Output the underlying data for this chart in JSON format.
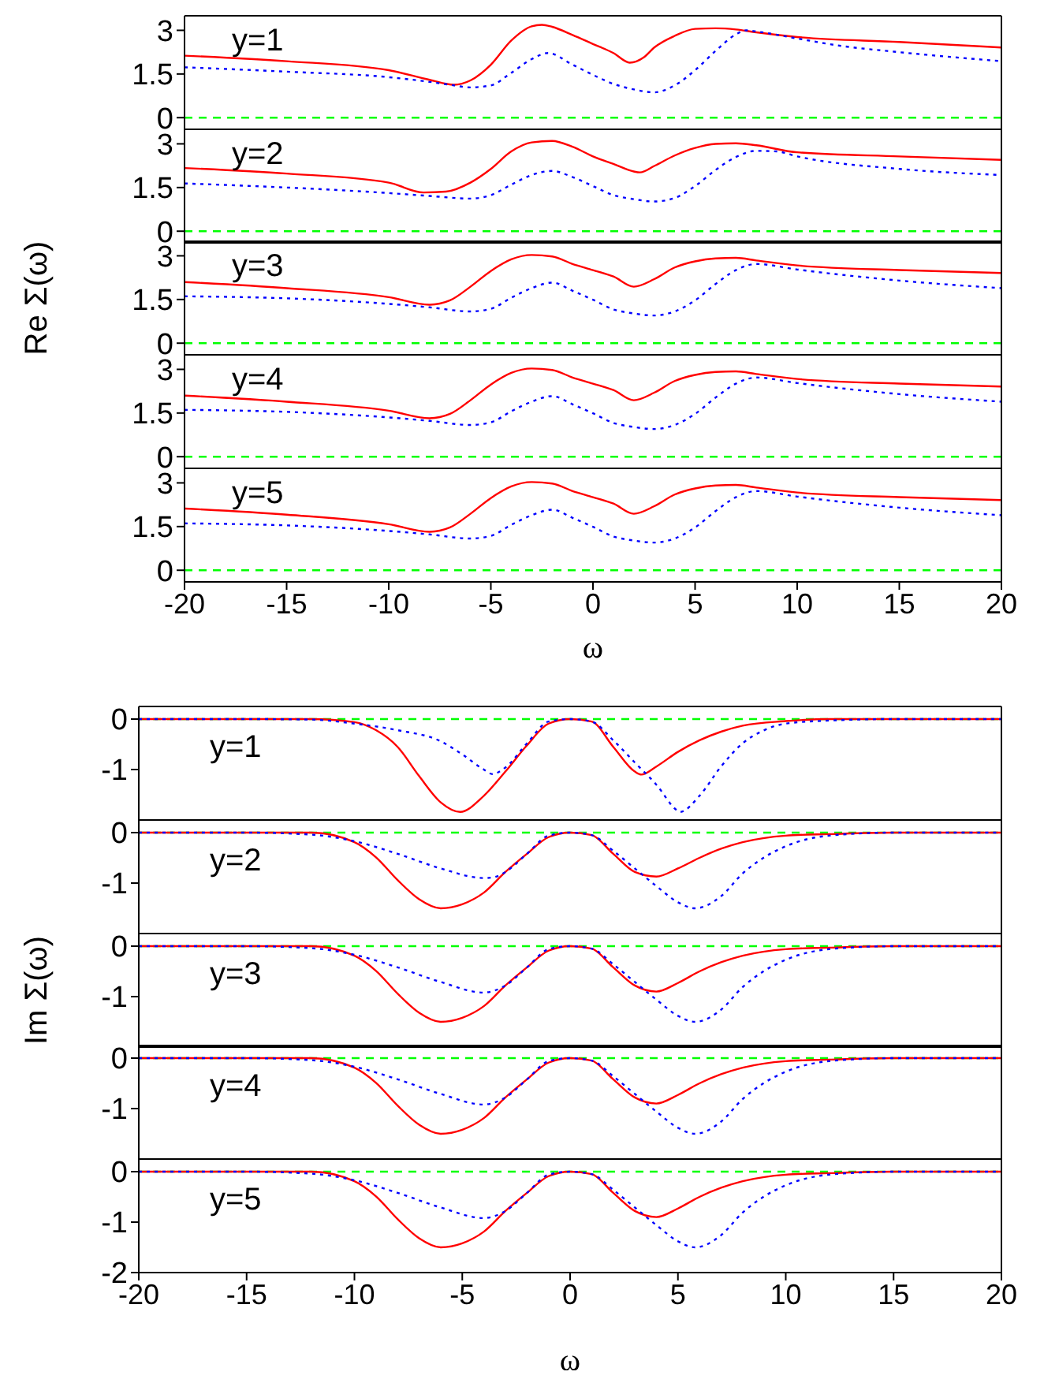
{
  "chart_data": [
    {
      "type": "line",
      "annotations": [
        "y=1"
      ],
      "xlim": [
        -20,
        20
      ],
      "xticks": [
        -20,
        -15,
        -10,
        -5,
        0,
        5,
        10,
        15,
        20
      ],
      "ylim": [
        -0.4,
        3.5
      ],
      "yticks": [
        0,
        1.5,
        3
      ],
      "tick_labels": "y",
      "ref_lines": [
        {
          "axis": "y",
          "value": 0,
          "color": "#00ff00",
          "line_style": "dashed"
        }
      ],
      "series": [
        {
          "color": "#ff0000",
          "line_style": "solid",
          "x": [
            -20,
            -15,
            -10,
            -8,
            -6.8,
            -6,
            -5,
            -4,
            -3,
            -2.5,
            -2,
            -1,
            0,
            1,
            1.8,
            2.5,
            3,
            4,
            5,
            6,
            7,
            8,
            10,
            15,
            20
          ],
          "values": [
            2.13,
            1.94,
            1.63,
            1.3,
            1.13,
            1.28,
            1.82,
            2.65,
            3.14,
            3.19,
            3.12,
            2.84,
            2.53,
            2.22,
            1.89,
            2.08,
            2.41,
            2.81,
            3.05,
            3.07,
            3.03,
            2.93,
            2.77,
            2.6,
            2.41
          ]
        },
        {
          "color": "#0000ff",
          "line_style": "dotted",
          "x": [
            -20,
            -15,
            -10,
            -8,
            -7,
            -6,
            -5,
            -4,
            -3,
            -2.2,
            -1,
            0,
            1,
            2,
            3,
            4,
            5,
            6,
            7,
            7.5,
            8,
            10,
            12,
            15,
            20
          ],
          "values": [
            1.73,
            1.58,
            1.39,
            1.23,
            1.13,
            1.04,
            1.11,
            1.54,
            2.01,
            2.22,
            1.82,
            1.47,
            1.16,
            0.97,
            0.87,
            1.11,
            1.63,
            2.29,
            2.86,
            3.0,
            2.96,
            2.72,
            2.48,
            2.25,
            1.94
          ]
        }
      ]
    },
    {
      "type": "line",
      "annotations": [
        "y=2"
      ],
      "xlim": [
        -20,
        20
      ],
      "xticks": [
        -20,
        -15,
        -10,
        -5,
        0,
        5,
        10,
        15,
        20
      ],
      "ylim": [
        -0.4,
        3.5
      ],
      "yticks": [
        0,
        1.5,
        3
      ],
      "tick_labels": "y",
      "ref_lines": [
        {
          "axis": "y",
          "value": 0,
          "color": "#00ff00",
          "line_style": "dashed"
        }
      ],
      "series": [
        {
          "color": "#ff0000",
          "line_style": "solid",
          "x": [
            -20,
            -15,
            -10,
            -8.3,
            -7.2,
            -6,
            -5,
            -4,
            -3,
            -2,
            -1,
            0,
            1,
            2,
            2.3,
            3,
            4,
            5,
            6,
            7,
            8,
            10,
            15,
            20
          ],
          "values": [
            2.17,
            1.98,
            1.67,
            1.33,
            1.36,
            1.67,
            2.14,
            2.74,
            3.05,
            3.1,
            2.9,
            2.57,
            2.31,
            2.05,
            2.02,
            2.24,
            2.6,
            2.86,
            3.0,
            3.02,
            2.95,
            2.71,
            2.57,
            2.45
          ]
        },
        {
          "color": "#0000ff",
          "line_style": "dotted",
          "x": [
            -20,
            -15,
            -10,
            -8,
            -6,
            -5,
            -4,
            -3,
            -2,
            -1,
            0,
            1,
            2,
            3,
            4,
            5,
            6,
            7,
            8,
            9,
            10,
            15,
            20
          ],
          "values": [
            1.64,
            1.5,
            1.31,
            1.21,
            1.12,
            1.24,
            1.6,
            1.93,
            2.07,
            1.86,
            1.55,
            1.24,
            1.1,
            1.02,
            1.14,
            1.55,
            2.1,
            2.55,
            2.76,
            2.74,
            2.57,
            2.14,
            1.93
          ]
        }
      ]
    },
    {
      "type": "line",
      "ylabel": "Re Σ(ω)",
      "annotations": [
        "y=3"
      ],
      "xlim": [
        -20,
        20
      ],
      "xticks": [
        -20,
        -15,
        -10,
        -5,
        0,
        5,
        10,
        15,
        20
      ],
      "ylim": [
        -0.4,
        3.5
      ],
      "yticks": [
        0,
        1.5,
        3
      ],
      "tick_labels": "y",
      "ref_lines": [
        {
          "axis": "y",
          "value": 0,
          "color": "#00ff00",
          "line_style": "dashed"
        }
      ],
      "series": [
        {
          "color": "#ff0000",
          "line_style": "solid",
          "x": [
            -20,
            -15,
            -10,
            -8,
            -7,
            -6,
            -5,
            -4,
            -3,
            -2,
            -1,
            0,
            1,
            2,
            3,
            4,
            5,
            6,
            7,
            8,
            10,
            15,
            20
          ],
          "values": [
            2.1,
            1.89,
            1.58,
            1.32,
            1.47,
            1.94,
            2.48,
            2.88,
            3.03,
            2.98,
            2.72,
            2.51,
            2.29,
            1.94,
            2.2,
            2.6,
            2.81,
            2.91,
            2.93,
            2.84,
            2.67,
            2.51,
            2.41
          ]
        },
        {
          "color": "#0000ff",
          "line_style": "dotted",
          "x": [
            -20,
            -15,
            -10,
            -8,
            -6,
            -5,
            -4,
            -3,
            -2,
            -1,
            0,
            1,
            2,
            3,
            4,
            5,
            6,
            7,
            8,
            10,
            15,
            20
          ],
          "values": [
            1.61,
            1.54,
            1.35,
            1.23,
            1.09,
            1.18,
            1.56,
            1.89,
            2.08,
            1.8,
            1.49,
            1.16,
            1.02,
            0.95,
            1.09,
            1.47,
            2.03,
            2.51,
            2.72,
            2.53,
            2.15,
            1.89
          ]
        }
      ]
    },
    {
      "type": "line",
      "annotations": [
        "y=4"
      ],
      "xlim": [
        -20,
        20
      ],
      "xticks": [
        -20,
        -15,
        -10,
        -5,
        0,
        5,
        10,
        15,
        20
      ],
      "ylim": [
        -0.4,
        3.5
      ],
      "yticks": [
        0,
        1.5,
        3
      ],
      "tick_labels": "y",
      "ref_lines": [
        {
          "axis": "y",
          "value": 0,
          "color": "#00ff00",
          "line_style": "dashed"
        }
      ],
      "series": [
        {
          "color": "#ff0000",
          "line_style": "solid",
          "x": [
            -20,
            -15,
            -10,
            -8,
            -7,
            -6,
            -5,
            -4,
            -3,
            -2,
            -1,
            0,
            1,
            2,
            3,
            4,
            5,
            6,
            7,
            8,
            10,
            15,
            20
          ],
          "values": [
            2.1,
            1.89,
            1.58,
            1.32,
            1.47,
            1.94,
            2.48,
            2.88,
            3.03,
            2.98,
            2.72,
            2.51,
            2.29,
            1.94,
            2.2,
            2.6,
            2.81,
            2.91,
            2.93,
            2.84,
            2.67,
            2.51,
            2.41
          ]
        },
        {
          "color": "#0000ff",
          "line_style": "dotted",
          "x": [
            -20,
            -15,
            -10,
            -8,
            -6,
            -5,
            -4,
            -3,
            -2,
            -1,
            0,
            1,
            2,
            3,
            4,
            5,
            6,
            7,
            8,
            10,
            15,
            20
          ],
          "values": [
            1.61,
            1.54,
            1.35,
            1.23,
            1.09,
            1.18,
            1.56,
            1.89,
            2.08,
            1.8,
            1.49,
            1.16,
            1.02,
            0.95,
            1.09,
            1.47,
            2.03,
            2.51,
            2.72,
            2.53,
            2.15,
            1.89
          ]
        }
      ]
    },
    {
      "type": "line",
      "xlabel": "ω",
      "annotations": [
        "y=5"
      ],
      "xlim": [
        -20,
        20
      ],
      "xticks": [
        -20,
        -15,
        -10,
        -5,
        0,
        5,
        10,
        15,
        20
      ],
      "ylim": [
        -0.4,
        3.5
      ],
      "yticks": [
        0,
        1.5,
        3
      ],
      "ref_lines": [
        {
          "axis": "y",
          "value": 0,
          "color": "#00ff00",
          "line_style": "dashed"
        }
      ],
      "series": [
        {
          "color": "#ff0000",
          "line_style": "solid",
          "x": [
            -20,
            -15,
            -10,
            -8,
            -7,
            -6,
            -5,
            -4,
            -3,
            -2,
            -1,
            0,
            1,
            2,
            3,
            4,
            5,
            6,
            7,
            8,
            10,
            15,
            20
          ],
          "values": [
            2.12,
            1.91,
            1.58,
            1.32,
            1.47,
            1.94,
            2.48,
            2.88,
            3.03,
            2.98,
            2.72,
            2.51,
            2.29,
            1.94,
            2.2,
            2.6,
            2.81,
            2.91,
            2.93,
            2.84,
            2.67,
            2.51,
            2.41
          ]
        },
        {
          "color": "#0000ff",
          "line_style": "dotted",
          "x": [
            -20,
            -15,
            -10,
            -8,
            -6,
            -5,
            -4,
            -3,
            -2,
            -1,
            0,
            1,
            2,
            3,
            4,
            5,
            6,
            7,
            8,
            10,
            15,
            20
          ],
          "values": [
            1.61,
            1.54,
            1.35,
            1.23,
            1.09,
            1.18,
            1.56,
            1.89,
            2.08,
            1.8,
            1.49,
            1.16,
            1.02,
            0.95,
            1.09,
            1.47,
            2.03,
            2.51,
            2.72,
            2.53,
            2.15,
            1.89
          ]
        }
      ]
    },
    {
      "type": "line",
      "annotations": [
        "y=1"
      ],
      "xlim": [
        -20,
        20
      ],
      "xticks": [
        -20,
        -15,
        -10,
        -5,
        0,
        5,
        10,
        15,
        20
      ],
      "ylim": [
        -2,
        0.25
      ],
      "yticks": [
        -1,
        0
      ],
      "tick_labels": "y",
      "ref_lines": [
        {
          "axis": "y",
          "value": 0,
          "color": "#00ff00",
          "line_style": "dashed"
        }
      ],
      "series": [
        {
          "color": "#ff0000",
          "line_style": "solid",
          "x": [
            -20,
            -12,
            -10,
            -9,
            -8,
            -7,
            -6,
            -5.1,
            -4,
            -3,
            -2,
            -1,
            0,
            1,
            2,
            3,
            3.3,
            4,
            5,
            6,
            7,
            8,
            10,
            12,
            20
          ],
          "values": [
            0,
            0,
            -0.06,
            -0.22,
            -0.55,
            -1.13,
            -1.65,
            -1.84,
            -1.52,
            -1.04,
            -0.52,
            -0.09,
            0,
            -0.05,
            -0.55,
            -1.04,
            -1.1,
            -0.94,
            -0.65,
            -0.42,
            -0.25,
            -0.13,
            -0.04,
            0,
            0
          ]
        },
        {
          "color": "#0000ff",
          "line_style": "dotted",
          "x": [
            -20,
            -15,
            -12,
            -10,
            -8,
            -6,
            -5,
            -4,
            -3.6,
            -3,
            -2,
            -1,
            0,
            1,
            2,
            3,
            4,
            5,
            5.1,
            6,
            7,
            8,
            9,
            10,
            12,
            15,
            20
          ],
          "values": [
            0,
            0,
            -0.01,
            -0.09,
            -0.22,
            -0.44,
            -0.7,
            -1.0,
            -1.09,
            -0.96,
            -0.48,
            -0.05,
            0,
            -0.05,
            -0.42,
            -0.86,
            -1.3,
            -1.82,
            -1.84,
            -1.52,
            -0.94,
            -0.48,
            -0.22,
            -0.09,
            -0.03,
            0,
            0
          ]
        }
      ]
    },
    {
      "type": "line",
      "annotations": [
        "y=2"
      ],
      "xlim": [
        -20,
        20
      ],
      "xticks": [
        -20,
        -15,
        -10,
        -5,
        0,
        5,
        10,
        15,
        20
      ],
      "ylim": [
        -2,
        0.25
      ],
      "yticks": [
        -1,
        0
      ],
      "tick_labels": "y",
      "ref_lines": [
        {
          "axis": "y",
          "value": 0,
          "color": "#00ff00",
          "line_style": "dashed"
        }
      ],
      "series": [
        {
          "color": "#ff0000",
          "line_style": "solid",
          "x": [
            -20,
            -12,
            -10,
            -9,
            -8,
            -7,
            -6,
            -5,
            -4,
            -3,
            -2,
            -1,
            0,
            1,
            2,
            3,
            4,
            5,
            6,
            7,
            8,
            10,
            12,
            15,
            20
          ],
          "values": [
            0,
            0,
            -0.19,
            -0.49,
            -0.94,
            -1.32,
            -1.5,
            -1.42,
            -1.19,
            -0.78,
            -0.42,
            -0.09,
            0,
            -0.05,
            -0.42,
            -0.78,
            -0.87,
            -0.71,
            -0.5,
            -0.32,
            -0.19,
            -0.06,
            -0.03,
            0,
            0
          ]
        },
        {
          "color": "#0000ff",
          "line_style": "dotted",
          "x": [
            -20,
            -15,
            -12,
            -10,
            -8,
            -6,
            -4,
            -3.5,
            -3,
            -2,
            -1,
            0,
            1,
            2,
            3,
            4,
            5,
            5.8,
            7,
            8,
            9,
            10,
            12,
            15,
            20
          ],
          "values": [
            0,
            0,
            -0.04,
            -0.17,
            -0.42,
            -0.71,
            -0.9,
            -0.88,
            -0.78,
            -0.42,
            -0.06,
            0,
            -0.05,
            -0.36,
            -0.71,
            -1.06,
            -1.38,
            -1.5,
            -1.26,
            -0.81,
            -0.49,
            -0.27,
            -0.06,
            0,
            0
          ]
        }
      ]
    },
    {
      "type": "line",
      "ylabel": "Im Σ(ω)",
      "annotations": [
        "y=3"
      ],
      "xlim": [
        -20,
        20
      ],
      "xticks": [
        -20,
        -15,
        -10,
        -5,
        0,
        5,
        10,
        15,
        20
      ],
      "ylim": [
        -2,
        0.25
      ],
      "yticks": [
        -1,
        0
      ],
      "tick_labels": "y",
      "ref_lines": [
        {
          "axis": "y",
          "value": 0,
          "color": "#00ff00",
          "line_style": "dashed"
        }
      ],
      "series": [
        {
          "color": "#ff0000",
          "line_style": "solid",
          "x": [
            -20,
            -12,
            -10,
            -9,
            -8,
            -7,
            -6,
            -5,
            -4,
            -3,
            -2,
            -1,
            0,
            1,
            2,
            3,
            4,
            5,
            6,
            7,
            8,
            10,
            12,
            15,
            20
          ],
          "values": [
            0,
            0,
            -0.19,
            -0.49,
            -0.94,
            -1.32,
            -1.5,
            -1.42,
            -1.19,
            -0.78,
            -0.42,
            -0.09,
            0,
            -0.05,
            -0.42,
            -0.78,
            -0.9,
            -0.73,
            -0.5,
            -0.32,
            -0.19,
            -0.06,
            -0.03,
            0,
            0
          ]
        },
        {
          "color": "#0000ff",
          "line_style": "dotted",
          "x": [
            -20,
            -15,
            -12,
            -10,
            -8,
            -6,
            -4,
            -3.5,
            -3,
            -2,
            -1,
            0,
            1,
            2,
            3,
            4,
            5,
            5.8,
            7,
            8,
            9,
            10,
            12,
            15,
            20
          ],
          "values": [
            0,
            0,
            -0.04,
            -0.17,
            -0.42,
            -0.71,
            -0.92,
            -0.88,
            -0.78,
            -0.42,
            -0.06,
            0,
            -0.05,
            -0.36,
            -0.71,
            -1.06,
            -1.38,
            -1.5,
            -1.26,
            -0.81,
            -0.49,
            -0.27,
            -0.06,
            0,
            0
          ]
        }
      ]
    },
    {
      "type": "line",
      "annotations": [
        "y=4"
      ],
      "xlim": [
        -20,
        20
      ],
      "xticks": [
        -20,
        -15,
        -10,
        -5,
        0,
        5,
        10,
        15,
        20
      ],
      "ylim": [
        -2,
        0.25
      ],
      "yticks": [
        -1,
        0
      ],
      "tick_labels": "y",
      "ref_lines": [
        {
          "axis": "y",
          "value": 0,
          "color": "#00ff00",
          "line_style": "dashed"
        }
      ],
      "series": [
        {
          "color": "#ff0000",
          "line_style": "solid",
          "x": [
            -20,
            -12,
            -10,
            -9,
            -8,
            -7,
            -6,
            -5,
            -4,
            -3,
            -2,
            -1,
            0,
            1,
            2,
            3,
            4,
            5,
            6,
            7,
            8,
            10,
            12,
            15,
            20
          ],
          "values": [
            0,
            0,
            -0.19,
            -0.49,
            -0.94,
            -1.32,
            -1.5,
            -1.42,
            -1.19,
            -0.78,
            -0.42,
            -0.09,
            0,
            -0.05,
            -0.42,
            -0.78,
            -0.9,
            -0.73,
            -0.5,
            -0.32,
            -0.19,
            -0.06,
            -0.03,
            0,
            0
          ]
        },
        {
          "color": "#0000ff",
          "line_style": "dotted",
          "x": [
            -20,
            -15,
            -12,
            -10,
            -8,
            -6,
            -4,
            -3.5,
            -3,
            -2,
            -1,
            0,
            1,
            2,
            3,
            4,
            5,
            5.8,
            7,
            8,
            9,
            10,
            12,
            15,
            20
          ],
          "values": [
            0,
            0,
            -0.04,
            -0.17,
            -0.42,
            -0.71,
            -0.92,
            -0.88,
            -0.78,
            -0.42,
            -0.06,
            0,
            -0.05,
            -0.36,
            -0.71,
            -1.06,
            -1.38,
            -1.5,
            -1.26,
            -0.81,
            -0.49,
            -0.27,
            -0.06,
            0,
            0
          ]
        }
      ]
    },
    {
      "type": "line",
      "xlabel": "ω",
      "annotations": [
        "y=5"
      ],
      "xlim": [
        -20,
        20
      ],
      "xticks": [
        -20,
        -15,
        -10,
        -5,
        0,
        5,
        10,
        15,
        20
      ],
      "ylim": [
        -2,
        0.25
      ],
      "yticks": [
        -2,
        -1,
        0
      ],
      "ref_lines": [
        {
          "axis": "y",
          "value": 0,
          "color": "#00ff00",
          "line_style": "dashed"
        }
      ],
      "series": [
        {
          "color": "#ff0000",
          "line_style": "solid",
          "x": [
            -20,
            -12,
            -10,
            -9,
            -8,
            -7,
            -6,
            -5,
            -4,
            -3,
            -2,
            -1,
            0,
            1,
            2,
            3,
            4,
            5,
            6,
            7,
            8,
            10,
            12,
            15,
            20
          ],
          "values": [
            0,
            0,
            -0.19,
            -0.49,
            -0.94,
            -1.32,
            -1.5,
            -1.42,
            -1.19,
            -0.78,
            -0.42,
            -0.09,
            0,
            -0.05,
            -0.42,
            -0.78,
            -0.9,
            -0.73,
            -0.5,
            -0.32,
            -0.19,
            -0.06,
            -0.03,
            0,
            0
          ]
        },
        {
          "color": "#0000ff",
          "line_style": "dotted",
          "x": [
            -20,
            -15,
            -12,
            -10,
            -8,
            -6,
            -4,
            -3.5,
            -3,
            -2,
            -1,
            0,
            1,
            2,
            3,
            4,
            5,
            5.8,
            7,
            8,
            9,
            10,
            12,
            15,
            20
          ],
          "values": [
            0,
            0,
            -0.04,
            -0.17,
            -0.42,
            -0.71,
            -0.92,
            -0.88,
            -0.78,
            -0.42,
            -0.06,
            0,
            -0.05,
            -0.36,
            -0.71,
            -1.06,
            -1.38,
            -1.5,
            -1.26,
            -0.81,
            -0.49,
            -0.27,
            -0.06,
            0,
            0
          ]
        }
      ]
    }
  ]
}
